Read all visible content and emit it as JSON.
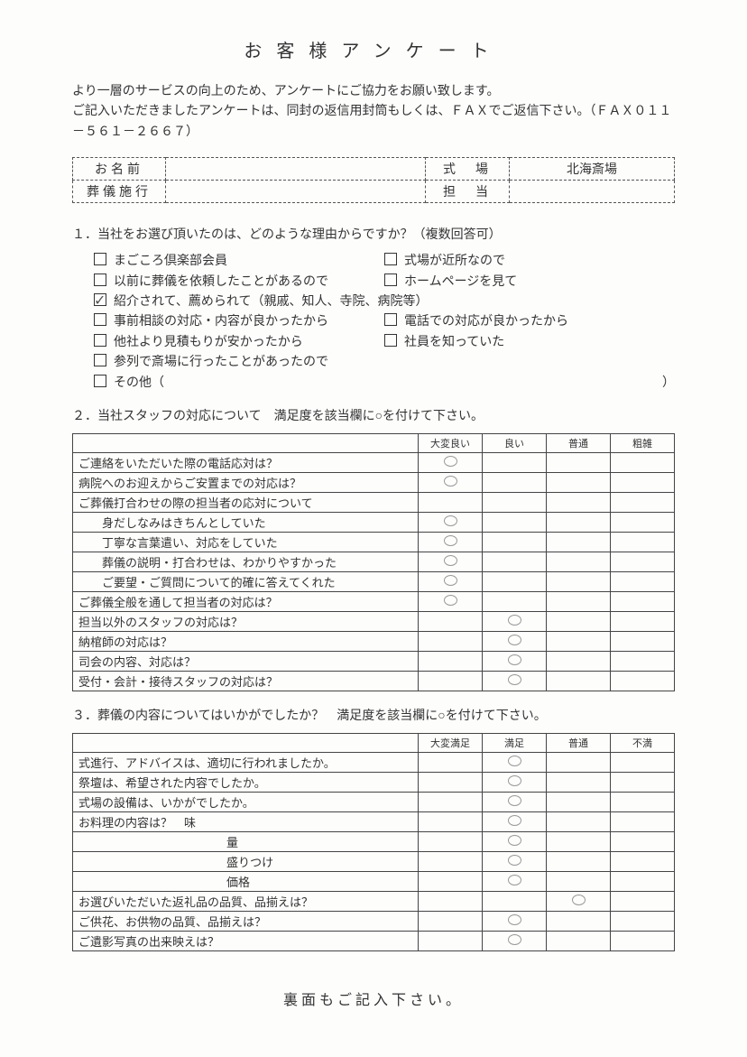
{
  "title": "お客様アンケート",
  "intro": "より一層のサービスの向上のため、アンケートにご協力をお願い致します。\nご記入いただきましたアンケートは、同封の返信用封筒もしくは、ＦＡＸでご返信下さい。（ＦＡＸ０１１－５６１－２６６７）",
  "info": {
    "name_label": "お名前",
    "name_value": "",
    "venue_label": "式　場",
    "venue_value": "北海斎場",
    "service_label": "葬儀施行",
    "service_value": "",
    "staff_label": "担　当",
    "staff_value": ""
  },
  "q1": {
    "text": "１．当社をお選び頂いたのは、どのような理由からですか？（複数回答可）",
    "rows": [
      [
        {
          "label": "まごころ倶楽部会員",
          "checked": false
        },
        {
          "label": "式場が近所なので",
          "checked": false
        }
      ],
      [
        {
          "label": "以前に葬儀を依頼したことがあるので",
          "checked": false
        },
        {
          "label": "ホームページを見て",
          "checked": false
        }
      ],
      [
        {
          "label": "紹介されて、薦められて（親戚、知人、寺院、病院等）",
          "checked": true,
          "full": true
        }
      ],
      [
        {
          "label": "事前相談の対応・内容が良かったから",
          "checked": false
        },
        {
          "label": "電話での対応が良かったから",
          "checked": false
        }
      ],
      [
        {
          "label": "他社より見積もりが安かったから",
          "checked": false
        },
        {
          "label": "社員を知っていた",
          "checked": false
        }
      ],
      [
        {
          "label": "参列で斎場に行ったことがあったので",
          "checked": false,
          "full": true
        }
      ],
      [
        {
          "label": "その他（",
          "checked": false,
          "full": true,
          "paren": "）"
        }
      ]
    ]
  },
  "q2": {
    "text": "２．当社スタッフの対応について　満足度を該当欄に○を付けて下さい。",
    "headers": [
      "大変良い",
      "良い",
      "普通",
      "粗雑"
    ],
    "rows": [
      {
        "label": "ご連絡をいただいた際の電話応対は？",
        "marks": [
          true,
          false,
          false,
          false
        ]
      },
      {
        "label": "病院へのお迎えからご安置までの対応は？",
        "marks": [
          true,
          false,
          false,
          false
        ]
      },
      {
        "label": "ご葬儀打合わせの際の担当者の応対について",
        "marks": [
          null,
          null,
          null,
          null
        ],
        "noborder_bottom": false
      },
      {
        "label": "身だしなみはきちんとしていた",
        "indent": true,
        "marks": [
          true,
          false,
          false,
          false
        ]
      },
      {
        "label": "丁寧な言葉遣い、対応をしていた",
        "indent": true,
        "marks": [
          true,
          false,
          false,
          false
        ]
      },
      {
        "label": "葬儀の説明・打合わせは、わかりやすかった",
        "indent": true,
        "marks": [
          true,
          false,
          false,
          false
        ]
      },
      {
        "label": "ご要望・ご質問について的確に答えてくれた",
        "indent": true,
        "marks": [
          true,
          false,
          false,
          false
        ]
      },
      {
        "label": "ご葬儀全般を通して担当者の対応は？",
        "marks": [
          true,
          false,
          false,
          false
        ]
      },
      {
        "label": "担当以外のスタッフの対応は？",
        "marks": [
          false,
          true,
          false,
          false
        ]
      },
      {
        "label": "納棺師の対応は？",
        "marks": [
          false,
          true,
          false,
          false
        ]
      },
      {
        "label": "司会の内容、対応は？",
        "marks": [
          false,
          true,
          false,
          false
        ]
      },
      {
        "label": "受付・会計・接待スタッフの対応は？",
        "marks": [
          false,
          true,
          false,
          false
        ]
      }
    ]
  },
  "q3": {
    "text": "３．葬儀の内容についてはいかがでしたか？　満足度を該当欄に○を付けて下さい。",
    "headers": [
      "大変満足",
      "満足",
      "普通",
      "不満"
    ],
    "rows": [
      {
        "label": "式進行、アドバイスは、適切に行われましたか。",
        "marks": [
          false,
          true,
          false,
          false
        ]
      },
      {
        "label": "祭壇は、希望された内容でしたか。",
        "marks": [
          false,
          true,
          false,
          false
        ]
      },
      {
        "label": "式場の設備は、いかがでしたか。",
        "marks": [
          false,
          true,
          false,
          false
        ]
      },
      {
        "label": "お料理の内容は？　味",
        "marks": [
          false,
          true,
          false,
          false
        ]
      },
      {
        "label": "量",
        "indent2": true,
        "marks": [
          false,
          true,
          false,
          false
        ]
      },
      {
        "label": "盛りつけ",
        "indent2": true,
        "marks": [
          false,
          true,
          false,
          false
        ]
      },
      {
        "label": "価格",
        "indent2": true,
        "marks": [
          false,
          true,
          false,
          false
        ]
      },
      {
        "label": "お選びいただいた返礼品の品質、品揃えは？",
        "marks": [
          false,
          false,
          true,
          false
        ]
      },
      {
        "label": "ご供花、お供物の品質、品揃えは？",
        "marks": [
          false,
          true,
          false,
          false
        ]
      },
      {
        "label": "ご遺影写真の出来映えは？",
        "marks": [
          false,
          true,
          false,
          false
        ]
      }
    ]
  },
  "footer": "裏面もご記入下さい。"
}
